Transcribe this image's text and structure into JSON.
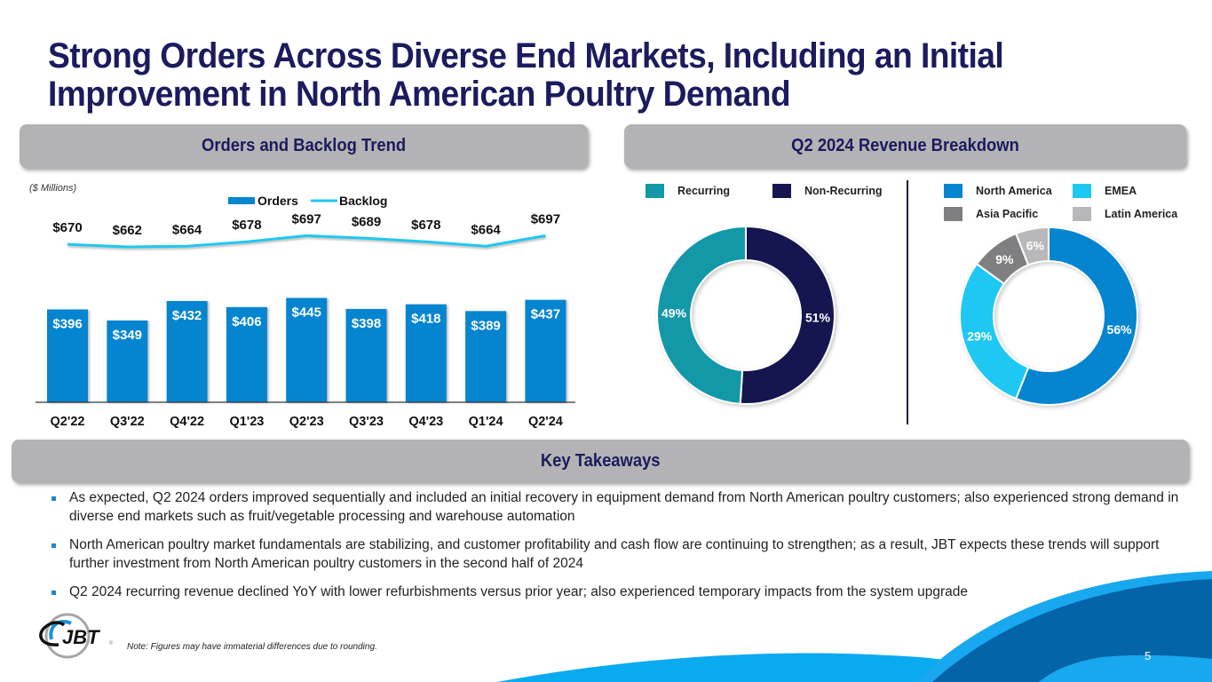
{
  "title": {
    "line1": "Strong Orders Across Diverse End Markets, Including an Initial",
    "line2": "Improvement in North American Poultry Demand"
  },
  "sections": {
    "orders_header": "Orders and Backlog Trend",
    "revenue_header": "Q2 2024 Revenue Breakdown",
    "takeaways_header": "Key Takeaways"
  },
  "units_note": "($ Millions)",
  "colors": {
    "orders_bar": "#0585d0",
    "backlog_line": "#1ec8f0",
    "recurring": "#1398a8",
    "non_recurring": "#15164f",
    "north_america": "#0585d0",
    "emea": "#1ec8f2",
    "asia_pacific": "#7f7f82",
    "latin_america": "#b8b8ba",
    "title": "#1b1b5e",
    "header_bg": "#b3b3b5"
  },
  "chart_data": [
    {
      "type": "bar",
      "title": "Orders and Backlog Trend",
      "ylabel": "($ Millions)",
      "categories": [
        "Q2'22",
        "Q3'22",
        "Q4'22",
        "Q1'23",
        "Q2'23",
        "Q3'23",
        "Q4'23",
        "Q1'24",
        "Q2'24"
      ],
      "legend": [
        "Orders",
        "Backlog"
      ],
      "legend_position": "top-center",
      "series": [
        {
          "name": "Orders",
          "type": "bar",
          "values": [
            396,
            349,
            432,
            406,
            445,
            398,
            418,
            389,
            437
          ],
          "labels": [
            "$396",
            "$349",
            "$432",
            "$406",
            "$445",
            "$398",
            "$418",
            "$389",
            "$437"
          ]
        },
        {
          "name": "Backlog",
          "type": "line",
          "values": [
            670,
            662,
            664,
            678,
            697,
            689,
            678,
            664,
            697
          ],
          "labels": [
            "$670",
            "$662",
            "$664",
            "$678",
            "$697",
            "$689",
            "$678",
            "$664",
            "$697"
          ]
        }
      ],
      "grid": false
    },
    {
      "type": "pie",
      "variant": "donut",
      "title": "Q2 2024 Revenue Breakdown - Recurring vs Non-Recurring",
      "legend_position": "top",
      "slices": [
        {
          "name": "Non-Recurring",
          "value": 51,
          "label": "51%"
        },
        {
          "name": "Recurring",
          "value": 49,
          "label": "49%"
        }
      ]
    },
    {
      "type": "pie",
      "variant": "donut",
      "title": "Q2 2024 Revenue Breakdown - Region",
      "legend_position": "top",
      "slices": [
        {
          "name": "North America",
          "value": 56,
          "label": "56%"
        },
        {
          "name": "EMEA",
          "value": 29,
          "label": "29%"
        },
        {
          "name": "Asia Pacific",
          "value": 9,
          "label": "9%"
        },
        {
          "name": "Latin America",
          "value": 6,
          "label": "6%"
        }
      ]
    }
  ],
  "legends": {
    "recurring": "Recurring",
    "non_recurring": "Non-Recurring",
    "north_america": "North America",
    "emea": "EMEA",
    "asia_pacific": "Asia Pacific",
    "latin_america": "Latin America"
  },
  "takeaways": [
    "As expected, Q2 2024 orders improved sequentially and included an initial recovery in equipment demand from North American poultry customers; also experienced strong demand in diverse end markets such as fruit/vegetable processing and warehouse automation",
    "North American poultry market fundamentals are stabilizing, and customer profitability and cash flow are continuing to strengthen; as a result, JBT expects these trends will support further investment from North American poultry customers in the second half of 2024",
    "Q2 2024 recurring revenue declined YoY with lower refurbishments versus prior year; also experienced temporary impacts from the system upgrade"
  ],
  "footer": {
    "note": "Note: Figures may have immaterial differences due to rounding.",
    "logo_text": "JBT",
    "page_number": "5"
  }
}
